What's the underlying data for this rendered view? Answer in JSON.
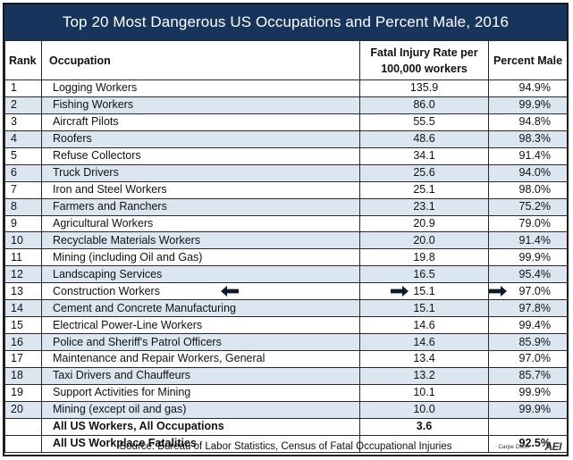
{
  "title": "Top 20 Most Dangerous US Occupations and Percent Male, 2016",
  "headers": {
    "rank": "Rank",
    "occupation": "Occupation",
    "rate_line1": "Fatal Injury Rate per",
    "rate_line2": "100,000 workers",
    "male": "Percent Male"
  },
  "rows": [
    {
      "rank": "1",
      "occupation": "Logging Workers",
      "rate": "135.9",
      "male": "94.9%"
    },
    {
      "rank": "2",
      "occupation": "Fishing Workers",
      "rate": "86.0",
      "male": "99.9%"
    },
    {
      "rank": "3",
      "occupation": "Aircraft Pilots",
      "rate": "55.5",
      "male": "94.8%"
    },
    {
      "rank": "4",
      "occupation": "Roofers",
      "rate": "48.6",
      "male": "98.3%"
    },
    {
      "rank": "5",
      "occupation": "Refuse Collectors",
      "rate": "34.1",
      "male": "91.4%"
    },
    {
      "rank": "6",
      "occupation": "Truck Drivers",
      "rate": "25.6",
      "male": "94.0%"
    },
    {
      "rank": "7",
      "occupation": "Iron and Steel Workers",
      "rate": "25.1",
      "male": "98.0%"
    },
    {
      "rank": "8",
      "occupation": "Farmers and Ranchers",
      "rate": "23.1",
      "male": "75.2%"
    },
    {
      "rank": "9",
      "occupation": "Agricultural Workers",
      "rate": "20.9",
      "male": "79.0%"
    },
    {
      "rank": "10",
      "occupation": "Recyclable Materials Workers",
      "rate": "20.0",
      "male": "91.4%"
    },
    {
      "rank": "11",
      "occupation": "Mining (including Oil and Gas)",
      "rate": "19.8",
      "male": "99.9%"
    },
    {
      "rank": "12",
      "occupation": "Landscaping Services",
      "rate": "16.5",
      "male": "95.4%"
    },
    {
      "rank": "13",
      "occupation": "Construction Workers",
      "rate": "15.1",
      "male": "97.0%"
    },
    {
      "rank": "14",
      "occupation": "Cement and Concrete Manufacturing",
      "rate": "15.1",
      "male": "97.8%"
    },
    {
      "rank": "15",
      "occupation": "Electrical Power-Line Workers",
      "rate": "14.6",
      "male": "99.4%"
    },
    {
      "rank": "16",
      "occupation": "Police and Sheriff's Patrol Officers",
      "rate": "14.6",
      "male": "85.9%"
    },
    {
      "rank": "17",
      "occupation": "Maintenance and Repair Workers, General",
      "rate": "13.4",
      "male": "97.0%"
    },
    {
      "rank": "18",
      "occupation": "Taxi Drivers and Chauffeurs",
      "rate": "13.2",
      "male": "85.7%"
    },
    {
      "rank": "19",
      "occupation": "Support Activities for Mining",
      "rate": "10.1",
      "male": "99.9%"
    },
    {
      "rank": "20",
      "occupation": "Mining (except oil and gas)",
      "rate": "10.0",
      "male": "99.9%"
    }
  ],
  "summary": [
    {
      "label": "All US Workers, All Occupations",
      "rate": "3.6",
      "male": ""
    },
    {
      "label": "All US Workplace Fatalities",
      "rate": "",
      "male": "92.5%"
    }
  ],
  "highlight_rank": "13",
  "arrow_icons": [
    "arrow-left-icon",
    "arrow-right-icon",
    "arrow-right-icon"
  ],
  "source": "Source: Bureau of Labor Statistics, Census of Fatal Occupational Injuries",
  "credit": "Carpe Diem",
  "logo": "AEI",
  "colors": {
    "title_background": "#17355c",
    "title_text": "#ffffff",
    "stripe": "#dce6f1",
    "arrow": "#0d1b2a"
  }
}
